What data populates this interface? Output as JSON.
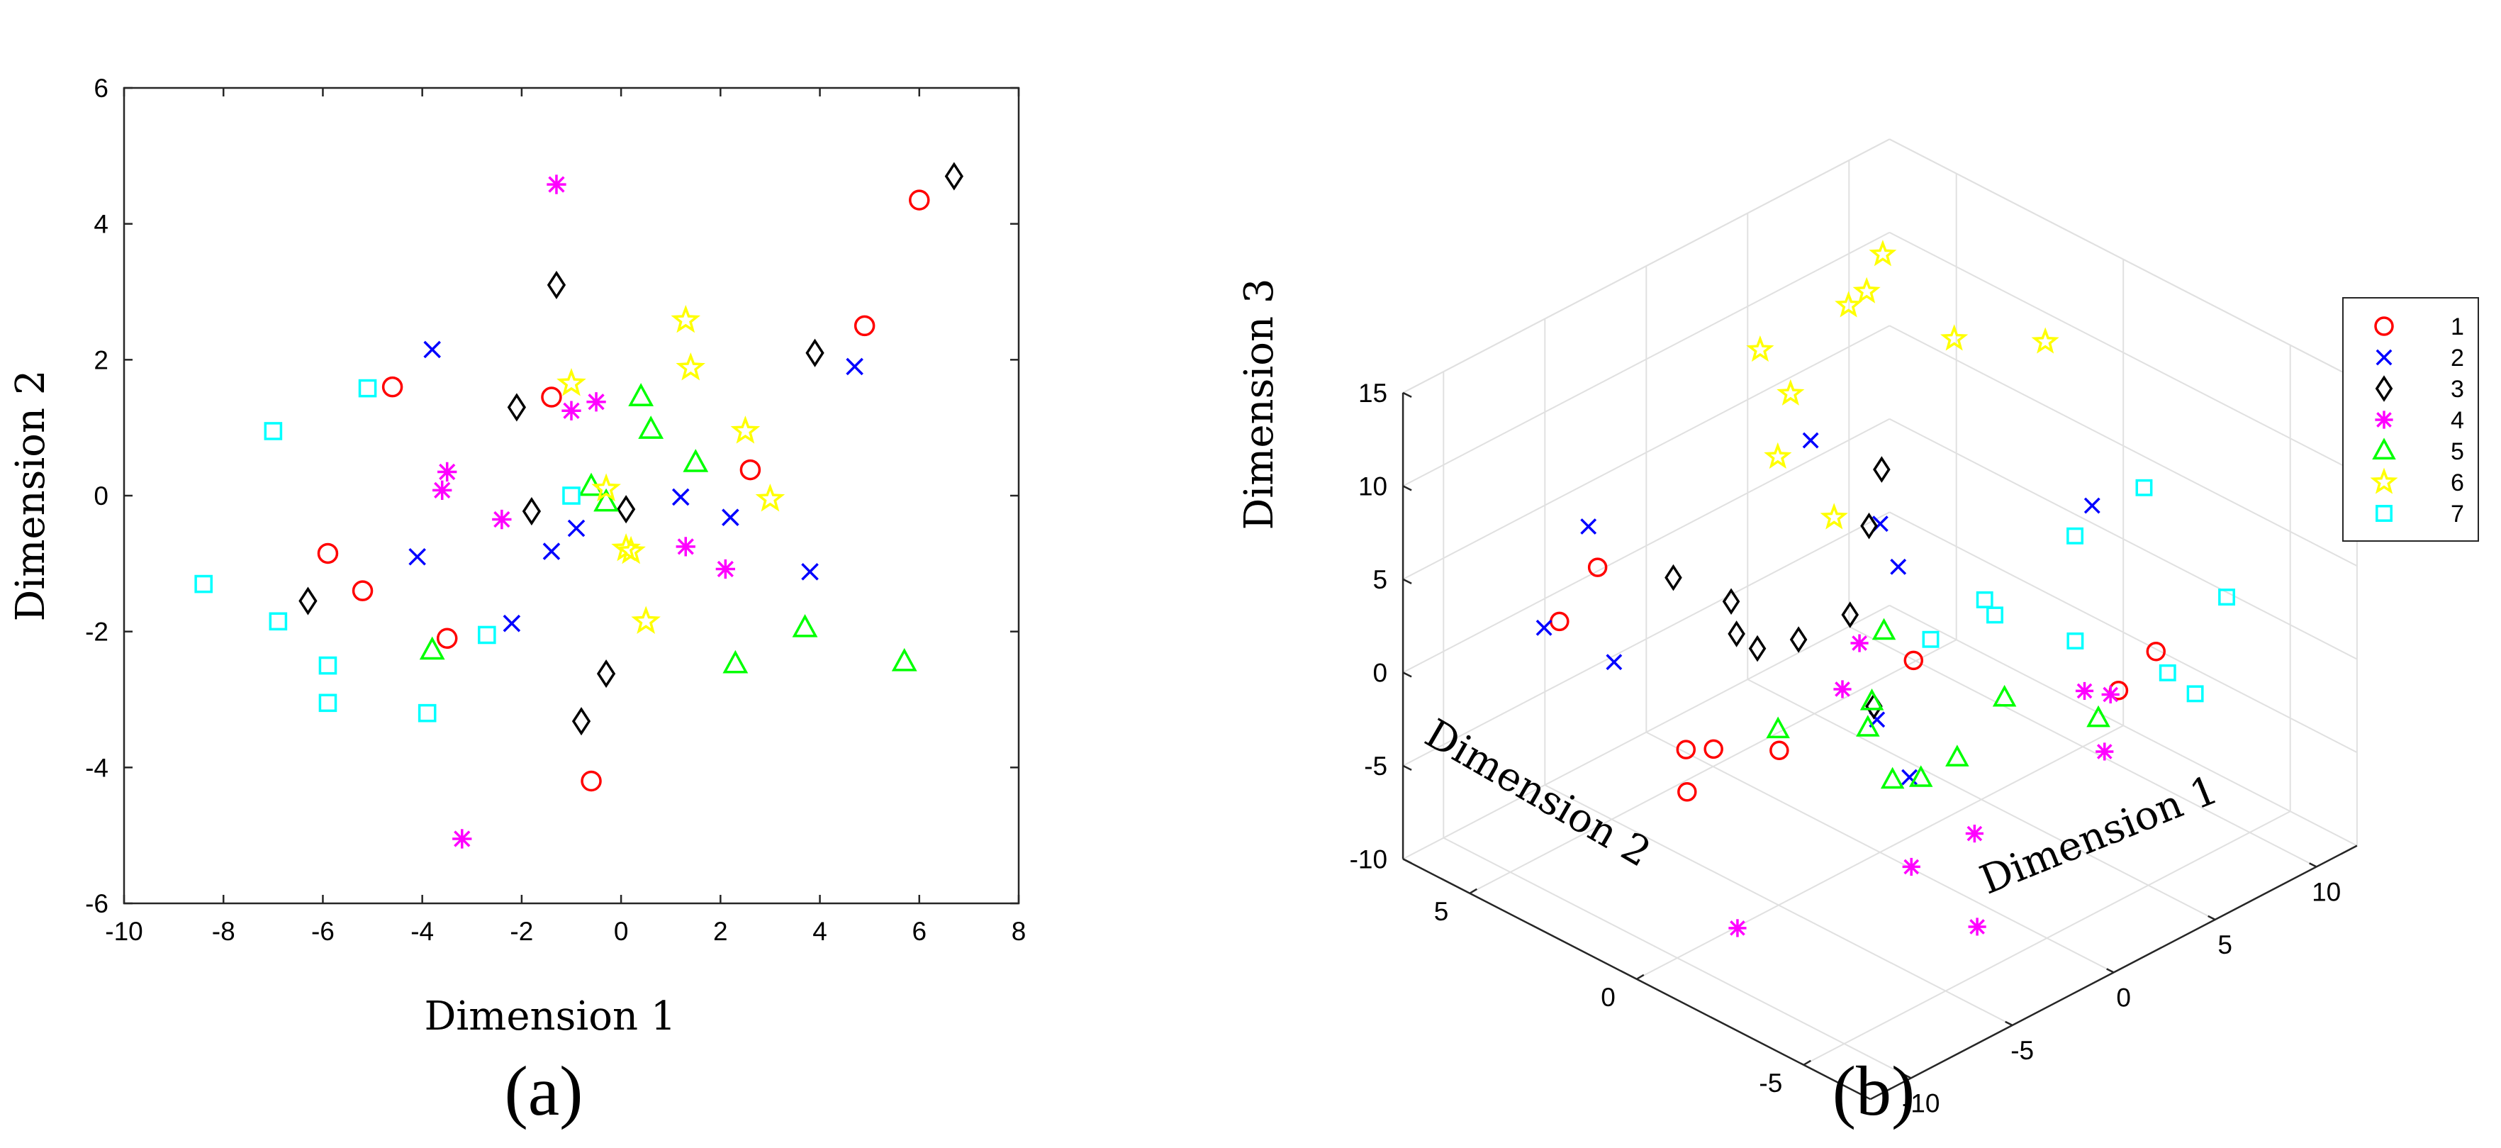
{
  "marker_style": {
    "1": {
      "shape": "circle",
      "color": "#ff0000"
    },
    "2": {
      "shape": "x",
      "color": "#0000ff"
    },
    "3": {
      "shape": "diamond",
      "color": "#000000"
    },
    "4": {
      "shape": "asterisk",
      "color": "#ff00ff"
    },
    "5": {
      "shape": "triangle",
      "color": "#00ff00"
    },
    "6": {
      "shape": "star",
      "color": "#ffff00"
    },
    "7": {
      "shape": "square",
      "color": "#00ffff"
    }
  },
  "chart_data": [
    {
      "type": "scatter",
      "caption": "(a)",
      "xlabel": "Dimension 1",
      "ylabel": "Dimension 2",
      "xlim": [
        -10,
        8
      ],
      "ylim": [
        -6,
        6
      ],
      "xticks": [
        "-10",
        "-8",
        "-6",
        "-4",
        "-2",
        "0",
        "2",
        "4",
        "6",
        "8"
      ],
      "yticks": [
        "-6",
        "-4",
        "-2",
        "0",
        "2",
        "4",
        "6"
      ],
      "grid": false,
      "series": [
        {
          "name": "1",
          "points": [
            [
              6.0,
              4.35
            ],
            [
              4.9,
              2.5
            ],
            [
              -4.6,
              1.6
            ],
            [
              -1.4,
              1.45
            ],
            [
              2.6,
              0.38
            ],
            [
              -5.9,
              -0.85
            ],
            [
              -5.2,
              -1.4
            ],
            [
              -3.5,
              -2.1
            ],
            [
              -0.6,
              -4.2
            ]
          ]
        },
        {
          "name": "2",
          "points": [
            [
              -3.8,
              2.15
            ],
            [
              4.7,
              1.9
            ],
            [
              1.2,
              -0.02
            ],
            [
              2.2,
              -0.32
            ],
            [
              -4.1,
              -0.9
            ],
            [
              -0.9,
              -0.48
            ],
            [
              -1.4,
              -0.82
            ],
            [
              3.8,
              -1.12
            ],
            [
              -2.2,
              -1.88
            ]
          ]
        },
        {
          "name": "3",
          "points": [
            [
              6.7,
              4.7
            ],
            [
              -1.3,
              3.1
            ],
            [
              3.9,
              2.1
            ],
            [
              -2.1,
              1.3
            ],
            [
              -1.8,
              -0.23
            ],
            [
              0.1,
              -0.2
            ],
            [
              -6.3,
              -1.55
            ],
            [
              -0.3,
              -2.62
            ],
            [
              -0.8,
              -3.32
            ]
          ]
        },
        {
          "name": "4",
          "points": [
            [
              -1.3,
              4.58
            ],
            [
              -0.5,
              1.38
            ],
            [
              -1.0,
              1.25
            ],
            [
              -3.5,
              0.35
            ],
            [
              -3.6,
              0.08
            ],
            [
              -2.4,
              -0.35
            ],
            [
              1.3,
              -0.75
            ],
            [
              2.1,
              -1.08
            ],
            [
              -3.2,
              -5.05
            ]
          ]
        },
        {
          "name": "5",
          "points": [
            [
              0.4,
              1.45
            ],
            [
              0.6,
              0.97
            ],
            [
              1.5,
              0.48
            ],
            [
              -0.6,
              0.13
            ],
            [
              -0.3,
              -0.1
            ],
            [
              3.7,
              -1.95
            ],
            [
              5.7,
              -2.45
            ],
            [
              2.3,
              -2.48
            ],
            [
              -3.8,
              -2.28
            ]
          ]
        },
        {
          "name": "6",
          "points": [
            [
              1.3,
              2.58
            ],
            [
              1.4,
              1.88
            ],
            [
              -1.0,
              1.65
            ],
            [
              2.5,
              0.95
            ],
            [
              -0.3,
              0.1
            ],
            [
              3.0,
              -0.05
            ],
            [
              0.1,
              -0.78
            ],
            [
              0.2,
              -0.82
            ],
            [
              0.5,
              -1.85
            ]
          ]
        },
        {
          "name": "7",
          "points": [
            [
              -5.1,
              1.58
            ],
            [
              -7.0,
              0.95
            ],
            [
              -1.0,
              0.0
            ],
            [
              -8.4,
              -1.3
            ],
            [
              -6.9,
              -1.85
            ],
            [
              -2.7,
              -2.05
            ],
            [
              -5.9,
              -2.5
            ],
            [
              -5.9,
              -3.05
            ],
            [
              -3.9,
              -3.2
            ]
          ]
        }
      ]
    },
    {
      "type": "scatter3d",
      "caption": "(b)",
      "xlabel": "Dimension 1",
      "ylabel": "Dimension 2",
      "zlabel": "Dimension 3",
      "xlim": [
        -12,
        12
      ],
      "ylim": [
        -7,
        7
      ],
      "zlim": [
        -10,
        15
      ],
      "xticks": [
        "-10",
        "-5",
        "0",
        "5",
        "10"
      ],
      "yticks": [
        "-5",
        "0",
        "5"
      ],
      "zticks": [
        "-10",
        "-5",
        "0",
        "5",
        "10",
        "15"
      ],
      "grid": true,
      "legend_position": "right",
      "series": [
        {
          "name": "1",
          "points": [
            [
              -8.0,
              3.6,
              6.5
            ],
            [
              -8.4,
              4.5,
              3.0
            ],
            [
              -5.4,
              2.5,
              -6.0
            ],
            [
              -4.3,
              3.2,
              -5.0
            ],
            [
              -3.6,
              2.8,
              -5.0
            ],
            [
              -2.5,
              1.5,
              -4.5
            ],
            [
              3.3,
              1.0,
              -2.5
            ],
            [
              6.2,
              -4.5,
              1.4
            ],
            [
              6.0,
              -3.5,
              -1.5
            ]
          ]
        },
        {
          "name": "2",
          "points": [
            [
              -11.3,
              3.2,
              5.5
            ],
            [
              -4.5,
              6.0,
              4.5
            ],
            [
              -9.0,
              2.5,
              3.0
            ],
            [
              3.0,
              3.9,
              6.8
            ],
            [
              1.0,
              0.6,
              6.5
            ],
            [
              0.9,
              0.0,
              4.8
            ],
            [
              -1.3,
              -0.7,
              -1.5
            ],
            [
              0.3,
              -0.7,
              -5.5
            ],
            [
              7.5,
              -1.8,
              6.0
            ]
          ]
        },
        {
          "name": "3",
          "points": [
            [
              -6.9,
              2.0,
              6.8
            ],
            [
              -5.2,
              1.3,
              5.2
            ],
            [
              -5.1,
              1.2,
              3.5
            ],
            [
              -4.4,
              1.0,
              2.5
            ],
            [
              -2.3,
              -0.5,
              4.5
            ],
            [
              -0.3,
              0.0,
              -2.0
            ],
            [
              1.6,
              1.3,
              5.4
            ],
            [
              1.4,
              0.8,
              9.0
            ],
            [
              -2.7,
              0.8,
              2.2
            ]
          ]
        },
        {
          "name": "4",
          "points": [
            [
              -2.0,
              -0.6,
              2.9
            ],
            [
              -0.7,
              0.7,
              -1.5
            ],
            [
              -3.9,
              -5.2,
              -2.0
            ],
            [
              -0.1,
              -1.0,
              -9.8
            ],
            [
              1.5,
              -2.0,
              -13.0
            ],
            [
              6.3,
              -2.3,
              -2.8
            ],
            [
              6.3,
              -2.9,
              -5.5
            ],
            [
              8.9,
              -1.5,
              -5.2
            ],
            [
              -9.5,
              -1.5,
              -7.3
            ]
          ]
        },
        {
          "name": "5",
          "points": [
            [
              -1.9,
              1.9,
              -4.1
            ],
            [
              -0.3,
              -0.3,
              2.3
            ],
            [
              -0.4,
              0.0,
              -1.7
            ],
            [
              -0.6,
              0.0,
              -3.0
            ],
            [
              -0.7,
              -0.8,
              -5.0
            ],
            [
              0.7,
              -0.8,
              -5.7
            ],
            [
              1.5,
              -1.4,
              -4.5
            ],
            [
              4.0,
              -1.3,
              -2.8
            ],
            [
              5.5,
              -3.2,
              -3.0
            ]
          ]
        },
        {
          "name": "6",
          "points": [
            [
              5.2,
              4.1,
              12.6
            ],
            [
              -1.3,
              2.8,
              15.1
            ],
            [
              5.9,
              3.5,
              15.5
            ],
            [
              0.2,
              2.8,
              11.9
            ],
            [
              9.8,
              1.0,
              10.9
            ],
            [
              5.6,
              3.8,
              13.4
            ],
            [
              -0.1,
              3.0,
              8.5
            ],
            [
              8.6,
              3.0,
              9.9
            ],
            [
              0.7,
              1.8,
              5.9
            ]
          ]
        },
        {
          "name": "7",
          "points": [
            [
              12.2,
              -0.5,
              3.1
            ],
            [
              8.3,
              -0.8,
              3.0
            ],
            [
              5.0,
              -0.1,
              0.8
            ],
            [
              5.5,
              -0.1,
              -0.3
            ],
            [
              6.5,
              -1.9,
              -0.6
            ],
            [
              11.5,
              -3.4,
              0.3
            ],
            [
              5.5,
              -6.1,
              1.0
            ],
            [
              7.6,
              -4.0,
              -1.0
            ],
            [
              2.5,
              0.0,
              0.0
            ]
          ]
        }
      ]
    }
  ]
}
